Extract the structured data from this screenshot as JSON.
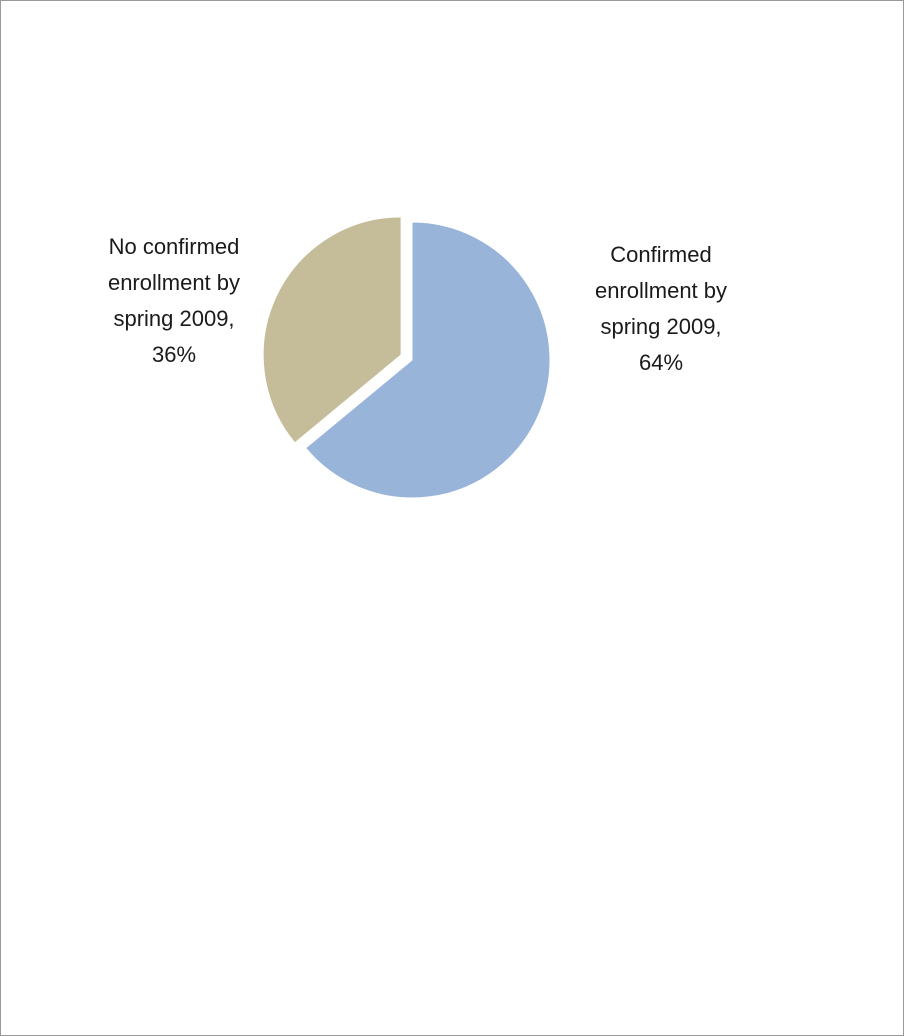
{
  "chart_data": {
    "type": "pie",
    "title": "",
    "slices": [
      {
        "label_lines": [
          "Confirmed",
          "enrollment by",
          "spring 2009,",
          "64%"
        ],
        "label": "Confirmed enrollment by spring 2009",
        "value": 64,
        "color": "#98b4d8",
        "exploded": false
      },
      {
        "label_lines": [
          "No confirmed",
          "enrollment by",
          "spring 2009,",
          "36%"
        ],
        "label": "No confirmed enrollment by spring 2009",
        "value": 36,
        "color": "#c5bd9a",
        "exploded": true
      }
    ],
    "start_angle": "12 o'clock",
    "direction": "clockwise",
    "data_labels": "outside",
    "legend": "none"
  }
}
